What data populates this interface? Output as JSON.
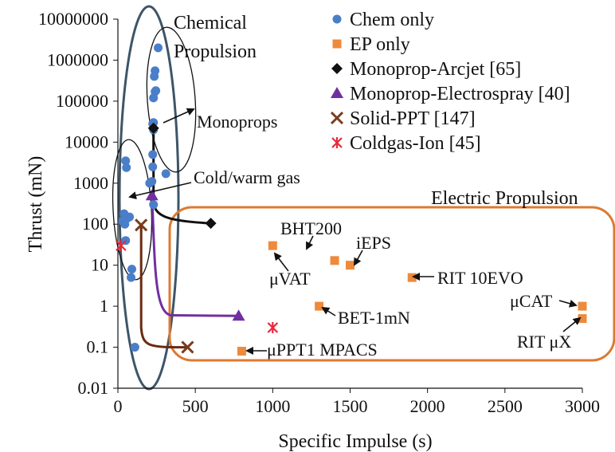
{
  "chart_data": {
    "type": "scatter",
    "xlabel": "Specific Impulse (s)",
    "ylabel": "Thrust (mN)",
    "xlim": [
      0,
      3000
    ],
    "ylim": [
      0.01,
      10000000
    ],
    "y_scale": "log",
    "x_ticks": [
      0,
      500,
      1000,
      1500,
      2000,
      2500,
      3000
    ],
    "x_tick_labels": [
      "0",
      "500",
      "1000",
      "1500",
      "2000",
      "2500",
      "3000"
    ],
    "y_ticks": [
      0.01,
      0.1,
      1,
      10,
      100,
      1000,
      10000,
      100000,
      1000000,
      10000000
    ],
    "y_tick_labels": [
      "0.01",
      "0.1",
      "1",
      "10",
      "100",
      "1000",
      "10000",
      "100000",
      "1000000",
      "10000000"
    ],
    "grid": false,
    "legend_position": "top-right",
    "series": [
      {
        "name": "Chem only",
        "marker": "circle",
        "color": "#4a7ec9",
        "points": [
          [
            260,
            2000000
          ],
          [
            240,
            550000
          ],
          [
            235,
            400000
          ],
          [
            245,
            180000
          ],
          [
            240,
            170000
          ],
          [
            230,
            120000
          ],
          [
            230,
            30000
          ],
          [
            225,
            28000
          ],
          [
            230,
            20000
          ],
          [
            225,
            5000
          ],
          [
            225,
            2500
          ],
          [
            310,
            1700
          ],
          [
            220,
            1100
          ],
          [
            205,
            1000
          ],
          [
            230,
            300
          ],
          [
            50,
            3500
          ],
          [
            55,
            2400
          ],
          [
            40,
            180
          ],
          [
            60,
            140
          ],
          [
            75,
            150
          ],
          [
            30,
            120
          ],
          [
            45,
            100
          ],
          [
            50,
            40
          ],
          [
            90,
            8
          ],
          [
            85,
            5
          ],
          [
            110,
            0.1
          ]
        ]
      },
      {
        "name": "EP only",
        "marker": "square",
        "color": "#ee8a3c",
        "points": [
          [
            1000,
            30
          ],
          [
            1400,
            13
          ],
          [
            1500,
            10
          ],
          [
            1900,
            5
          ],
          [
            1300,
            1
          ],
          [
            800,
            0.08
          ],
          [
            3000,
            1
          ],
          [
            3000,
            0.5
          ]
        ]
      },
      {
        "name": "Monoprop-Arcjet [65]",
        "marker": "diamond",
        "color": "#111111",
        "points": [
          [
            230,
            22000
          ],
          [
            600,
            105
          ]
        ]
      },
      {
        "name": "Monoprop-Electrospray [40]",
        "marker": "triangle",
        "color": "#7030a0",
        "points": [
          [
            220,
            500
          ],
          [
            780,
            0.58
          ]
        ]
      },
      {
        "name": "Solid-PPT [147]",
        "marker": "x",
        "color": "#7b3b1c",
        "points": [
          [
            150,
            95
          ],
          [
            450,
            0.1
          ]
        ]
      },
      {
        "name": "Coldgas-Ion [45]",
        "marker": "asterisk",
        "color": "#e8283a",
        "points": [
          [
            20,
            30
          ],
          [
            1000,
            0.3
          ]
        ]
      }
    ],
    "annotations": [
      "Chemical",
      "Propulsion",
      "Electric Propulsion",
      "Monoprops",
      "Cold/warm gas",
      "BHT200",
      "iEPS",
      "μVAT",
      "RIT 10EVO",
      "BET-1mN",
      "μPPT1 MPACS",
      "μCAT",
      "RIT μX"
    ],
    "colors": {
      "chem_ellipse": "#3d5568",
      "ep_box": "#dc7a32",
      "arcjet_curve": "#111111",
      "electrospray_curve": "#7030a0",
      "ppt_curve": "#6b2a10"
    }
  }
}
